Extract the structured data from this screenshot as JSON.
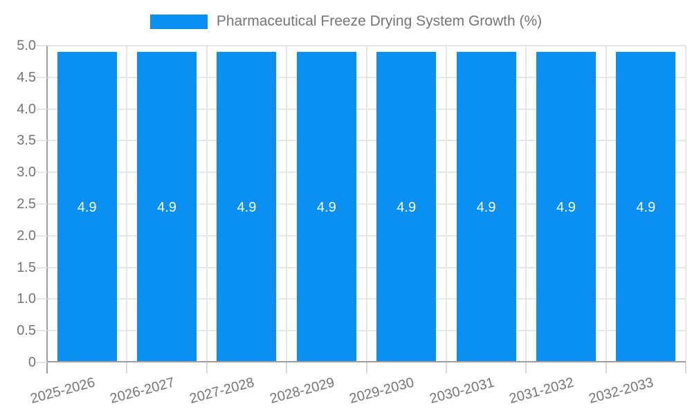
{
  "chart_data": {
    "type": "bar",
    "title": "Pharmaceutical Freeze Drying System Growth (%)",
    "legend": {
      "position": "top",
      "label": "Pharmaceutical Freeze Drying System Growth (%)"
    },
    "categories": [
      "2025-2026",
      "2026-2027",
      "2027-2028",
      "2028-2029",
      "2029-2030",
      "2030-2031",
      "2031-2032",
      "2032-2033"
    ],
    "series": [
      {
        "name": "Pharmaceutical Freeze Drying System Growth (%)",
        "values": [
          4.9,
          4.9,
          4.9,
          4.9,
          4.9,
          4.9,
          4.9,
          4.9
        ],
        "value_labels": [
          "4.9",
          "4.9",
          "4.9",
          "4.9",
          "4.9",
          "4.9",
          "4.9",
          "4.9"
        ]
      }
    ],
    "xlabel": "",
    "ylabel": "",
    "ylim": [
      0,
      5
    ],
    "y_ticks": [
      {
        "value": 0,
        "label": "0"
      },
      {
        "value": 0.5,
        "label": "0.5"
      },
      {
        "value": 1,
        "label": "1.0"
      },
      {
        "value": 1.5,
        "label": "1.5"
      },
      {
        "value": 2,
        "label": "2.0"
      },
      {
        "value": 2.5,
        "label": "2.5"
      },
      {
        "value": 3,
        "label": "3.0"
      },
      {
        "value": 3.5,
        "label": "3.5"
      },
      {
        "value": 4,
        "label": "4.0"
      },
      {
        "value": 4.5,
        "label": "4.5"
      },
      {
        "value": 5,
        "label": "5.0"
      }
    ],
    "grid": true,
    "colors": {
      "bar": "#0990f2",
      "grid": "#e6e6e6",
      "axis": "#9e9e9e",
      "text": "#757575",
      "bar_label": "#ffffff",
      "background": "#ffffff"
    }
  }
}
